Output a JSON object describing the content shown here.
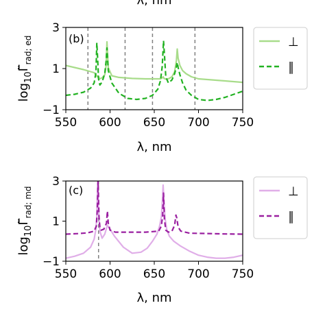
{
  "top_fragment": "λ, nm",
  "bottom_fragment": "~",
  "chart_data": [
    {
      "type": "line",
      "panel_label": "(b)",
      "xlabel": "λ, nm",
      "ylabel_html": "log",
      "ylabel_sub": "10",
      "ylabel_main": "Γ̃",
      "ylabel_sub2": "rad; ed",
      "xlim": [
        550,
        750
      ],
      "ylim": [
        -1,
        3
      ],
      "xticks": [
        550,
        600,
        650,
        700,
        750
      ],
      "xtick_labels": [
        "550",
        "600",
        "650",
        "700",
        "750"
      ],
      "yticks": [
        -1,
        1,
        3
      ],
      "ytick_labels": [
        "−1",
        "1",
        "3"
      ],
      "vlines": [
        575,
        617,
        648,
        696
      ],
      "legend": [
        {
          "label": "⊥",
          "color": "#a8dc8a",
          "style": "solid"
        },
        {
          "label": "∥",
          "color": "#22b222",
          "style": "dashed"
        }
      ],
      "series": [
        {
          "label": "⊥",
          "color": "#a8dc8a",
          "style": "solid",
          "x": [
            550,
            560,
            570,
            578,
            582,
            584,
            585.5,
            586.5,
            588,
            591,
            594,
            595.5,
            596.5,
            598,
            602,
            610,
            625,
            640,
            652,
            657,
            659,
            660,
            661,
            663,
            666,
            670,
            673,
            675,
            676,
            677,
            679,
            682,
            686,
            692,
            700,
            715,
            730,
            750
          ],
          "y": [
            1.15,
            1.05,
            0.95,
            0.85,
            0.8,
            0.7,
            0.6,
            0.65,
            0.5,
            0.55,
            0.7,
            1.15,
            2.3,
            1.05,
            0.65,
            0.57,
            0.52,
            0.5,
            0.5,
            0.5,
            0.55,
            0.6,
            0.52,
            0.49,
            0.5,
            0.6,
            0.85,
            1.4,
            1.95,
            1.5,
            1.15,
            0.9,
            0.75,
            0.6,
            0.5,
            0.45,
            0.4,
            0.33
          ]
        },
        {
          "label": "∥",
          "color": "#22b222",
          "style": "dashed",
          "x": [
            550,
            560,
            570,
            578,
            582,
            584,
            585,
            586,
            587,
            588.5,
            591,
            594,
            595.5,
            596.5,
            598,
            602,
            610,
            620,
            630,
            640,
            648,
            654,
            657,
            659,
            660.5,
            661.5,
            663,
            666,
            670,
            673,
            675,
            676,
            677,
            679,
            682,
            686,
            692,
            700,
            710,
            720,
            730,
            740,
            750
          ],
          "y": [
            -0.3,
            -0.25,
            -0.15,
            0.05,
            0.3,
            0.8,
            2.25,
            1.5,
            0.5,
            0.2,
            0.35,
            0.75,
            1.35,
            2.0,
            0.9,
            0.3,
            -0.2,
            -0.45,
            -0.5,
            -0.45,
            -0.3,
            0.0,
            0.4,
            1.1,
            2.35,
            1.7,
            0.6,
            0.3,
            0.45,
            0.75,
            1.1,
            1.3,
            1.05,
            0.7,
            0.3,
            -0.05,
            -0.3,
            -0.5,
            -0.55,
            -0.5,
            -0.4,
            -0.25,
            -0.1
          ]
        }
      ]
    },
    {
      "type": "line",
      "panel_label": "(c)",
      "xlabel": "λ, nm",
      "ylabel_html": "log",
      "ylabel_sub": "10",
      "ylabel_main": "Γ̃",
      "ylabel_sub2": "rad; md",
      "xlim": [
        550,
        750
      ],
      "ylim": [
        -1,
        3
      ],
      "xticks": [
        550,
        600,
        650,
        700,
        750
      ],
      "xtick_labels": [
        "550",
        "600",
        "650",
        "700",
        "750"
      ],
      "yticks": [
        -1,
        1,
        3
      ],
      "ytick_labels": [
        "−1",
        "1",
        "3"
      ],
      "vlines": [
        587
      ],
      "legend": [
        {
          "label": "⊥",
          "color": "#e0aee8",
          "style": "solid"
        },
        {
          "label": "∥",
          "color": "#9a1fa0",
          "style": "dashed"
        }
      ],
      "series": [
        {
          "label": "⊥",
          "color": "#e0aee8",
          "style": "solid",
          "x": [
            550,
            560,
            570,
            578,
            582,
            584,
            585,
            586,
            587,
            588.5,
            591,
            594,
            597,
            600,
            605,
            615,
            625,
            635,
            642,
            648,
            653,
            656,
            658,
            659,
            660,
            661,
            662,
            664,
            667,
            672,
            680,
            690,
            700,
            710,
            720,
            730,
            740,
            750
          ],
          "y": [
            -0.85,
            -0.75,
            -0.6,
            -0.3,
            0.1,
            0.6,
            1.2,
            3.0,
            1.6,
            0.5,
            0.15,
            0.35,
            0.8,
            0.6,
            0.25,
            -0.3,
            -0.6,
            -0.55,
            -0.35,
            0.0,
            0.35,
            0.75,
            1.2,
            1.9,
            2.8,
            2.0,
            1.2,
            0.6,
            0.25,
            0.0,
            -0.25,
            -0.5,
            -0.7,
            -0.8,
            -0.85,
            -0.85,
            -0.8,
            -0.7
          ]
        },
        {
          "label": "∥",
          "color": "#9a1fa0",
          "style": "dashed",
          "x": [
            550,
            565,
            575,
            582,
            584.5,
            585.5,
            586.5,
            587.5,
            588.5,
            590,
            593,
            596,
            597,
            598,
            600,
            606,
            620,
            640,
            655,
            658,
            659.5,
            660.5,
            661.5,
            663,
            666,
            670,
            673,
            674.5,
            675.5,
            677,
            680,
            690,
            710,
            730,
            750
          ],
          "y": [
            0.35,
            0.38,
            0.42,
            0.5,
            0.75,
            1.5,
            3.0,
            1.2,
            0.7,
            0.55,
            0.6,
            0.9,
            1.5,
            0.9,
            0.55,
            0.45,
            0.45,
            0.45,
            0.5,
            0.75,
            1.3,
            2.4,
            1.1,
            0.55,
            0.45,
            0.5,
            0.8,
            1.3,
            1.15,
            0.7,
            0.5,
            0.4,
            0.38,
            0.36,
            0.35
          ]
        }
      ]
    }
  ]
}
